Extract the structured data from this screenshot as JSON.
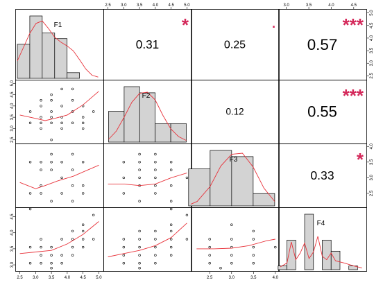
{
  "chart_data": {
    "type": "scatter-matrix",
    "variables": [
      "F1",
      "F2",
      "F3",
      "F4"
    ],
    "axes": {
      "top_ticks": [
        {
          "col": 2,
          "labels": [
            "2.5",
            "3.0",
            "3.5",
            "4.0",
            "4.5",
            "5.0"
          ],
          "values": [
            2.5,
            3.0,
            3.5,
            4.0,
            4.5,
            5.0
          ]
        },
        {
          "col": 4,
          "labels": [
            "3.0",
            "3.5",
            "4.0",
            "4.5"
          ],
          "values": [
            3.0,
            3.5,
            4.0,
            4.5
          ]
        }
      ],
      "bottom_ticks": [
        {
          "col": 1,
          "labels": [
            "2.5",
            "3.0",
            "3.5",
            "4.0",
            "4.5",
            "5.0"
          ],
          "values": [
            2.5,
            3.0,
            3.5,
            4.0,
            4.5,
            5.0
          ]
        },
        {
          "col": 3,
          "labels": [
            "2.5",
            "3.0",
            "3.5",
            "4.0"
          ],
          "values": [
            2.5,
            3.0,
            3.5,
            4.0
          ]
        }
      ],
      "left_ticks": [
        {
          "row": 2,
          "labels": [
            "2.5",
            "3.0",
            "3.5",
            "4.0",
            "4.5",
            "5.0"
          ],
          "values": [
            2.5,
            3.0,
            3.5,
            4.0,
            4.5,
            5.0
          ]
        },
        {
          "row": 4,
          "labels": [
            "3.0",
            "3.5",
            "4.0",
            "4.5"
          ],
          "values": [
            3.0,
            3.5,
            4.0,
            4.5
          ]
        }
      ],
      "right_ticks": [
        {
          "row": 1,
          "labels": [
            "2.5",
            "3.0",
            "3.5",
            "4.0",
            "4.5",
            "5.0"
          ],
          "values": [
            2.5,
            3.0,
            3.5,
            4.0,
            4.5,
            5.0
          ]
        },
        {
          "row": 3,
          "labels": [
            "2.5",
            "3.0",
            "3.5",
            "4.0"
          ],
          "values": [
            2.5,
            3.0,
            3.5,
            4.0
          ]
        }
      ]
    },
    "ranges": {
      "F1": [
        2.4,
        5.1
      ],
      "F2": [
        2.4,
        5.1
      ],
      "F3": [
        2.1,
        4.05
      ],
      "F4": [
        2.85,
        4.75
      ]
    },
    "histograms": [
      {
        "var": "F1",
        "bins": [
          2.4,
          2.8,
          3.2,
          3.6,
          4.0,
          4.4,
          4.8
        ],
        "counts": [
          6,
          11,
          8,
          7,
          1,
          0
        ]
      },
      {
        "var": "F2",
        "bins": [
          2.5,
          3.0,
          3.5,
          4.0,
          4.5,
          5.0
        ],
        "counts": [
          5,
          9,
          8,
          3,
          3
        ]
      },
      {
        "var": "F3",
        "bins": [
          2.0,
          2.5,
          3.0,
          3.5,
          4.0
        ],
        "counts": [
          6,
          9,
          8,
          2
        ]
      },
      {
        "var": "F4",
        "bins": [
          2.8,
          3.0,
          3.2,
          3.4,
          3.6,
          3.8,
          4.0,
          4.2,
          4.4,
          4.6,
          4.8
        ],
        "counts": [
          1,
          8,
          0,
          15,
          0,
          8,
          5,
          0,
          1,
          0
        ]
      }
    ],
    "correlations": [
      {
        "row": 1,
        "col": 2,
        "r": "0.31",
        "stars": "*"
      },
      {
        "row": 1,
        "col": 3,
        "r": "0.25",
        "stars": "·"
      },
      {
        "row": 1,
        "col": 4,
        "r": "0.57",
        "stars": "***"
      },
      {
        "row": 2,
        "col": 3,
        "r": "0.12",
        "stars": ""
      },
      {
        "row": 2,
        "col": 4,
        "r": "0.55",
        "stars": "***"
      },
      {
        "row": 3,
        "col": 4,
        "r": "0.33",
        "stars": "*"
      }
    ],
    "scatter": [
      {
        "row": 2,
        "col": 1,
        "points": [
          [
            3.83,
            4.75
          ],
          [
            4.17,
            4.75
          ],
          [
            3.5,
            4.5
          ],
          [
            3.17,
            4.25
          ],
          [
            3.5,
            4.25
          ],
          [
            4.17,
            4.25
          ],
          [
            3.17,
            4.0
          ],
          [
            3.83,
            4.0
          ],
          [
            4.5,
            4.0
          ],
          [
            2.83,
            3.75
          ],
          [
            3.5,
            3.75
          ],
          [
            4.17,
            3.75
          ],
          [
            4.83,
            3.75
          ],
          [
            3.17,
            3.5
          ],
          [
            3.5,
            3.5
          ],
          [
            3.83,
            3.5
          ],
          [
            4.5,
            3.5
          ],
          [
            2.83,
            3.25
          ],
          [
            3.17,
            3.25
          ],
          [
            3.5,
            3.25
          ],
          [
            3.83,
            3.25
          ],
          [
            4.17,
            3.25
          ],
          [
            4.5,
            3.25
          ],
          [
            3.17,
            3.0
          ],
          [
            3.83,
            3.0
          ],
          [
            4.5,
            3.0
          ],
          [
            3.5,
            2.5
          ]
        ]
      },
      {
        "row": 3,
        "col": 1,
        "points": [
          [
            3.5,
            3.75
          ],
          [
            4.17,
            3.75
          ],
          [
            2.83,
            3.5
          ],
          [
            3.17,
            3.5
          ],
          [
            3.5,
            3.5
          ],
          [
            3.83,
            3.5
          ],
          [
            4.5,
            3.5
          ],
          [
            3.17,
            3.25
          ],
          [
            3.5,
            3.25
          ],
          [
            4.17,
            3.25
          ],
          [
            3.83,
            3.0
          ],
          [
            3.17,
            2.75
          ],
          [
            4.17,
            2.75
          ],
          [
            4.5,
            2.75
          ],
          [
            2.83,
            2.5
          ],
          [
            3.17,
            2.5
          ],
          [
            3.83,
            2.5
          ],
          [
            4.5,
            2.5
          ],
          [
            3.5,
            2.25
          ],
          [
            4.17,
            2.25
          ],
          [
            2.83,
            2.0
          ]
        ]
      },
      {
        "row": 3,
        "col": 2,
        "points": [
          [
            3.5,
            3.75
          ],
          [
            4.0,
            3.75
          ],
          [
            3.0,
            3.5
          ],
          [
            3.5,
            3.5
          ],
          [
            4.0,
            3.5
          ],
          [
            4.5,
            3.5
          ],
          [
            3.5,
            3.25
          ],
          [
            4.0,
            3.25
          ],
          [
            4.5,
            3.25
          ],
          [
            3.0,
            3.0
          ],
          [
            3.5,
            3.0
          ],
          [
            4.0,
            3.0
          ],
          [
            5.0,
            3.0
          ],
          [
            3.5,
            2.75
          ],
          [
            4.0,
            2.75
          ],
          [
            4.5,
            2.75
          ],
          [
            3.0,
            2.5
          ],
          [
            4.0,
            2.5
          ],
          [
            3.5,
            2.25
          ],
          [
            4.5,
            2.25
          ],
          [
            4.5,
            2.0
          ]
        ]
      },
      {
        "row": 4,
        "col": 1,
        "points": [
          [
            4.83,
            4.55
          ],
          [
            4.5,
            4.25
          ],
          [
            4.17,
            4.05
          ],
          [
            4.5,
            4.05
          ],
          [
            3.17,
            3.8
          ],
          [
            3.83,
            3.8
          ],
          [
            4.17,
            3.8
          ],
          [
            4.5,
            3.8
          ],
          [
            4.83,
            3.8
          ],
          [
            2.83,
            3.55
          ],
          [
            3.17,
            3.55
          ],
          [
            3.5,
            3.55
          ],
          [
            4.17,
            3.55
          ],
          [
            4.5,
            3.55
          ],
          [
            3.17,
            3.3
          ],
          [
            3.5,
            3.3
          ],
          [
            3.83,
            3.3
          ],
          [
            4.17,
            3.3
          ],
          [
            2.83,
            3.05
          ],
          [
            3.17,
            3.05
          ],
          [
            3.5,
            3.05
          ],
          [
            3.83,
            3.05
          ],
          [
            3.5,
            2.9
          ]
        ]
      },
      {
        "row": 4,
        "col": 2,
        "points": [
          [
            5.0,
            4.55
          ],
          [
            4.5,
            4.25
          ],
          [
            3.5,
            4.05
          ],
          [
            4.0,
            4.05
          ],
          [
            4.5,
            4.05
          ],
          [
            3.0,
            3.8
          ],
          [
            3.5,
            3.8
          ],
          [
            4.0,
            3.8
          ],
          [
            4.5,
            3.8
          ],
          [
            5.0,
            3.8
          ],
          [
            3.0,
            3.55
          ],
          [
            3.5,
            3.55
          ],
          [
            4.0,
            3.55
          ],
          [
            4.5,
            3.55
          ],
          [
            3.0,
            3.3
          ],
          [
            3.5,
            3.3
          ],
          [
            4.0,
            3.3
          ],
          [
            4.5,
            3.3
          ],
          [
            3.0,
            3.05
          ],
          [
            3.5,
            3.05
          ],
          [
            4.0,
            3.05
          ],
          [
            3.5,
            2.9
          ]
        ]
      },
      {
        "row": 4,
        "col": 3,
        "points": [
          [
            3.0,
            4.25
          ],
          [
            3.5,
            4.05
          ],
          [
            2.5,
            3.8
          ],
          [
            3.0,
            3.8
          ],
          [
            3.5,
            3.8
          ],
          [
            2.5,
            3.55
          ],
          [
            3.0,
            3.55
          ],
          [
            3.5,
            3.55
          ],
          [
            4.0,
            3.55
          ],
          [
            2.5,
            3.3
          ],
          [
            3.0,
            3.3
          ],
          [
            3.5,
            3.3
          ],
          [
            2.5,
            3.05
          ],
          [
            3.0,
            3.05
          ],
          [
            3.5,
            3.05
          ],
          [
            2.75,
            2.9
          ]
        ]
      }
    ],
    "smooth_lines": [
      {
        "row": 2,
        "col": 1,
        "points": [
          [
            2.5,
            3.6
          ],
          [
            3.0,
            3.45
          ],
          [
            3.3,
            3.35
          ],
          [
            3.6,
            3.45
          ],
          [
            4.0,
            3.6
          ],
          [
            4.5,
            4.05
          ],
          [
            5.0,
            4.65
          ]
        ]
      },
      {
        "row": 3,
        "col": 1,
        "points": [
          [
            2.5,
            2.85
          ],
          [
            3.0,
            2.65
          ],
          [
            3.3,
            2.75
          ],
          [
            3.7,
            2.9
          ],
          [
            4.2,
            3.05
          ],
          [
            5.0,
            3.4
          ]
        ]
      },
      {
        "row": 3,
        "col": 2,
        "points": [
          [
            2.5,
            2.8
          ],
          [
            3.0,
            2.8
          ],
          [
            3.5,
            2.75
          ],
          [
            4.0,
            2.8
          ],
          [
            4.5,
            3.0
          ],
          [
            5.0,
            3.15
          ]
        ]
      },
      {
        "row": 4,
        "col": 1,
        "points": [
          [
            2.5,
            3.35
          ],
          [
            3.0,
            3.4
          ],
          [
            3.5,
            3.45
          ],
          [
            4.0,
            3.65
          ],
          [
            4.5,
            3.95
          ],
          [
            5.0,
            4.35
          ]
        ]
      },
      {
        "row": 4,
        "col": 2,
        "points": [
          [
            2.5,
            3.25
          ],
          [
            3.0,
            3.35
          ],
          [
            3.5,
            3.45
          ],
          [
            4.0,
            3.6
          ],
          [
            4.5,
            3.85
          ],
          [
            5.0,
            4.3
          ]
        ]
      },
      {
        "row": 4,
        "col": 3,
        "points": [
          [
            2.2,
            3.5
          ],
          [
            2.6,
            3.5
          ],
          [
            3.0,
            3.52
          ],
          [
            3.4,
            3.6
          ],
          [
            3.8,
            3.75
          ],
          [
            4.0,
            3.8
          ]
        ]
      }
    ],
    "density_lines": [
      {
        "var": "F1",
        "points": [
          [
            2.4,
            0.28
          ],
          [
            2.6,
            0.5
          ],
          [
            2.8,
            0.72
          ],
          [
            3.0,
            0.88
          ],
          [
            3.2,
            0.92
          ],
          [
            3.4,
            0.8
          ],
          [
            3.6,
            0.66
          ],
          [
            3.8,
            0.58
          ],
          [
            4.0,
            0.52
          ],
          [
            4.2,
            0.44
          ],
          [
            4.4,
            0.3
          ],
          [
            4.6,
            0.15
          ],
          [
            4.8,
            0.05
          ],
          [
            5.0,
            0.02
          ]
        ]
      },
      {
        "var": "F2",
        "points": [
          [
            2.5,
            0.05
          ],
          [
            2.75,
            0.2
          ],
          [
            3.0,
            0.45
          ],
          [
            3.25,
            0.72
          ],
          [
            3.5,
            0.88
          ],
          [
            3.75,
            0.9
          ],
          [
            4.0,
            0.76
          ],
          [
            4.25,
            0.48
          ],
          [
            4.5,
            0.24
          ],
          [
            4.75,
            0.1
          ],
          [
            5.0,
            0.03
          ]
        ]
      },
      {
        "var": "F3",
        "points": [
          [
            2.05,
            0.03
          ],
          [
            2.2,
            0.08
          ],
          [
            2.5,
            0.35
          ],
          [
            2.75,
            0.72
          ],
          [
            3.0,
            0.93
          ],
          [
            3.25,
            0.95
          ],
          [
            3.5,
            0.7
          ],
          [
            3.75,
            0.32
          ],
          [
            4.0,
            0.08
          ]
        ]
      },
      {
        "var": "F4",
        "points": [
          [
            2.85,
            0.05
          ],
          [
            3.0,
            0.12
          ],
          [
            3.1,
            0.5
          ],
          [
            3.2,
            0.18
          ],
          [
            3.3,
            0.3
          ],
          [
            3.4,
            0.48
          ],
          [
            3.5,
            0.2
          ],
          [
            3.6,
            0.32
          ],
          [
            3.7,
            0.6
          ],
          [
            3.8,
            0.24
          ],
          [
            3.9,
            0.18
          ],
          [
            4.0,
            0.3
          ],
          [
            4.1,
            0.16
          ],
          [
            4.3,
            0.12
          ],
          [
            4.5,
            0.07
          ],
          [
            4.7,
            0.03
          ]
        ]
      }
    ],
    "colors": {
      "smooth": "#e8323a",
      "stars": "#d4285a",
      "hist_fill": "#d3d3d3",
      "frame": "#000000",
      "point": "#000000"
    }
  }
}
